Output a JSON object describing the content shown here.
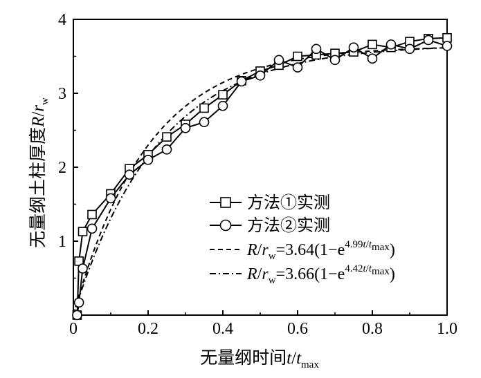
{
  "chart_data": {
    "type": "line",
    "xlim": [
      0,
      1.0
    ],
    "ylim": [
      0,
      4
    ],
    "x_ticks": [
      "0",
      "0.2",
      "0.4",
      "0.6",
      "0.8",
      "1.0"
    ],
    "y_ticks": [
      "1",
      "2",
      "3",
      "4"
    ],
    "xlabel": {
      "text": "无量纲时间",
      "var": "t",
      "slash": "/",
      "var2": "t",
      "sub": "max"
    },
    "ylabel": {
      "text": "无量纲土柱厚度",
      "var": "R",
      "slash": "/",
      "var2": "r",
      "sub": "w"
    },
    "legend_position": "center-right",
    "series": [
      {
        "name": "方法①实测",
        "marker": "square",
        "color": "#000000",
        "points": [
          [
            0.01,
            0.0
          ],
          [
            0.015,
            0.73
          ],
          [
            0.025,
            1.13
          ],
          [
            0.05,
            1.36
          ],
          [
            0.1,
            1.64
          ],
          [
            0.15,
            1.98
          ],
          [
            0.2,
            2.17
          ],
          [
            0.25,
            2.41
          ],
          [
            0.3,
            2.58
          ],
          [
            0.35,
            2.8
          ],
          [
            0.4,
            2.98
          ],
          [
            0.45,
            3.17
          ],
          [
            0.5,
            3.3
          ],
          [
            0.55,
            3.38
          ],
          [
            0.6,
            3.5
          ],
          [
            0.65,
            3.52
          ],
          [
            0.7,
            3.54
          ],
          [
            0.75,
            3.56
          ],
          [
            0.8,
            3.66
          ],
          [
            0.85,
            3.62
          ],
          [
            0.9,
            3.7
          ],
          [
            0.95,
            3.74
          ],
          [
            1.0,
            3.75
          ]
        ]
      },
      {
        "name": "方法②实测",
        "marker": "circle",
        "color": "#000000",
        "points": [
          [
            0.01,
            0.0
          ],
          [
            0.015,
            0.17
          ],
          [
            0.025,
            0.63
          ],
          [
            0.05,
            1.17
          ],
          [
            0.1,
            1.58
          ],
          [
            0.15,
            1.9
          ],
          [
            0.2,
            2.1
          ],
          [
            0.25,
            2.24
          ],
          [
            0.3,
            2.53
          ],
          [
            0.35,
            2.61
          ],
          [
            0.4,
            2.83
          ],
          [
            0.45,
            3.16
          ],
          [
            0.5,
            3.24
          ],
          [
            0.55,
            3.45
          ],
          [
            0.6,
            3.35
          ],
          [
            0.65,
            3.6
          ],
          [
            0.7,
            3.45
          ],
          [
            0.75,
            3.62
          ],
          [
            0.8,
            3.47
          ],
          [
            0.85,
            3.66
          ],
          [
            0.9,
            3.6
          ],
          [
            0.95,
            3.72
          ],
          [
            1.0,
            3.64
          ]
        ]
      },
      {
        "name": "fit-1",
        "style": "dashed",
        "color": "#000000",
        "a": 3.64,
        "k": 4.99,
        "legend": {
          "var": "R",
          "slash": "/",
          "var2": "r",
          "sub": "w",
          "eq": "=3.64(1−e",
          "exp_num": "4.99",
          "exp_var": "t",
          "exp_slash": "/",
          "exp_var2": "t",
          "exp_sub": "max",
          "close": ")"
        }
      },
      {
        "name": "fit-2",
        "style": "dashdot",
        "color": "#000000",
        "a": 3.66,
        "k": 4.42,
        "legend": {
          "var": "R",
          "slash": "/",
          "var2": "r",
          "sub": "w",
          "eq": "=3.66(1−e",
          "exp_num": "4.42",
          "exp_var": "t",
          "exp_slash": "/",
          "exp_var2": "t",
          "exp_sub": "max",
          "close": ")"
        }
      }
    ]
  }
}
